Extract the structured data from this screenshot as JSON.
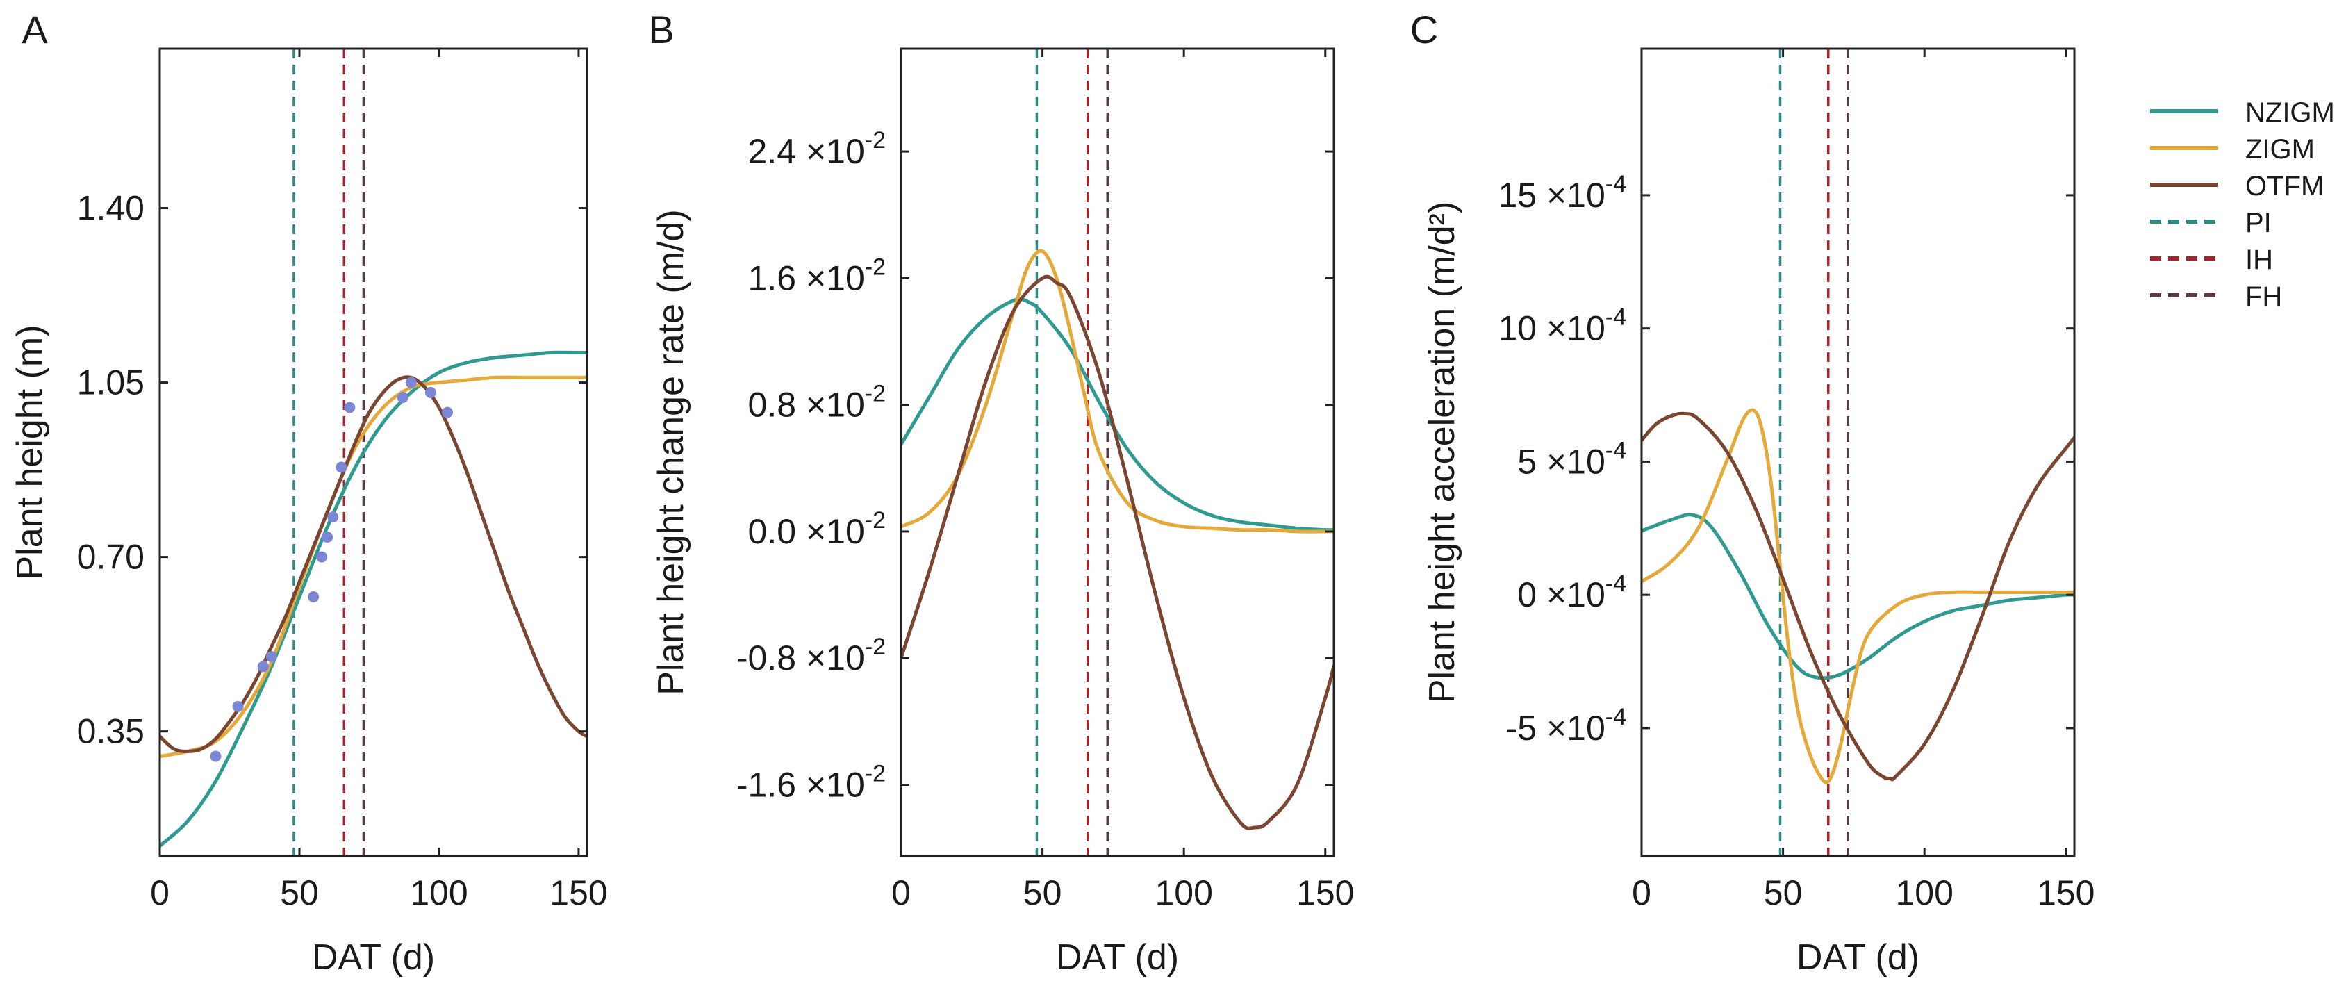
{
  "legend": {
    "items": [
      {
        "key": "NZIGM",
        "label": "NZIGM",
        "color": "#2e9a90",
        "style": "solid"
      },
      {
        "key": "ZIGM",
        "label": "ZIGM",
        "color": "#e5a93a",
        "style": "solid"
      },
      {
        "key": "OTFM",
        "label": "OTFM",
        "color": "#7a4632",
        "style": "solid"
      },
      {
        "key": "PI",
        "label": "PI",
        "color": "#2e8a84",
        "style": "dashed"
      },
      {
        "key": "IH",
        "label": "IH",
        "color": "#a8222a",
        "style": "dashed"
      },
      {
        "key": "FH",
        "label": "FH",
        "color": "#5a3a4a",
        "style": "dashed"
      }
    ]
  },
  "chart_data": [
    {
      "panel": "A",
      "type": "line",
      "ylabel": "Plant height (m)",
      "xlabel": "DAT (d)",
      "xlim": [
        0,
        153
      ],
      "ylim": [
        0.1,
        1.72
      ],
      "xticks": [
        0,
        50,
        100,
        150
      ],
      "xtick_labels": [
        "0",
        "50",
        "100",
        "150"
      ],
      "yticks": [
        0.35,
        0.7,
        1.05,
        1.4
      ],
      "ytick_labels": [
        "0.35",
        "0.70",
        "1.05",
        "1.40"
      ],
      "vlines": [
        {
          "key": "PI",
          "x": 48
        },
        {
          "key": "IH",
          "x": 66
        },
        {
          "key": "FH",
          "x": 73
        }
      ],
      "series": [
        {
          "key": "NZIGM",
          "x": [
            0,
            10,
            20,
            30,
            40,
            50,
            60,
            70,
            80,
            90,
            100,
            110,
            120,
            130,
            140,
            150,
            153
          ],
          "y": [
            0.12,
            0.17,
            0.25,
            0.36,
            0.48,
            0.62,
            0.76,
            0.88,
            0.97,
            1.03,
            1.07,
            1.09,
            1.1,
            1.105,
            1.11,
            1.11,
            1.11
          ]
        },
        {
          "key": "ZIGM",
          "x": [
            0,
            10,
            20,
            30,
            40,
            50,
            60,
            70,
            80,
            90,
            100,
            110,
            120,
            130,
            140,
            150,
            153
          ],
          "y": [
            0.3,
            0.31,
            0.33,
            0.39,
            0.49,
            0.64,
            0.79,
            0.92,
            1.0,
            1.04,
            1.05,
            1.055,
            1.06,
            1.06,
            1.06,
            1.06,
            1.06
          ]
        },
        {
          "key": "OTFM",
          "x": [
            0,
            5,
            10,
            15,
            20,
            25,
            30,
            35,
            40,
            45,
            50,
            55,
            60,
            65,
            70,
            75,
            80,
            85,
            90,
            95,
            100,
            105,
            110,
            115,
            120,
            125,
            130,
            135,
            140,
            145,
            150,
            153
          ],
          "y": [
            0.34,
            0.315,
            0.31,
            0.315,
            0.335,
            0.37,
            0.41,
            0.46,
            0.52,
            0.58,
            0.65,
            0.72,
            0.79,
            0.86,
            0.93,
            0.99,
            1.03,
            1.055,
            1.06,
            1.04,
            1.0,
            0.94,
            0.87,
            0.79,
            0.71,
            0.63,
            0.56,
            0.49,
            0.43,
            0.38,
            0.35,
            0.34
          ]
        }
      ],
      "points": {
        "x": [
          20,
          28,
          37,
          40,
          55,
          58,
          60,
          62,
          65,
          68,
          87,
          90,
          97,
          103
        ],
        "y": [
          0.3,
          0.4,
          0.48,
          0.5,
          0.62,
          0.7,
          0.74,
          0.78,
          0.88,
          1.0,
          1.02,
          1.05,
          1.03,
          0.99
        ]
      }
    },
    {
      "panel": "B",
      "type": "line",
      "ylabel": "Plant height change rate (m/d)",
      "xlabel": "DAT (d)",
      "xlim": [
        0,
        153
      ],
      "ylim": [
        -0.0205,
        0.0305
      ],
      "xticks": [
        0,
        50,
        100,
        150
      ],
      "xtick_labels": [
        "0",
        "50",
        "100",
        "150"
      ],
      "yticks": [
        -0.016,
        -0.008,
        0.0,
        0.008,
        0.016,
        0.024
      ],
      "ytick_labels": [
        {
          "mantissa": "-1.6",
          "exp": "-2"
        },
        {
          "mantissa": "-0.8",
          "exp": "-2"
        },
        {
          "mantissa": "0.0",
          "exp": "-2"
        },
        {
          "mantissa": "0.8",
          "exp": "-2"
        },
        {
          "mantissa": "1.6",
          "exp": "-2"
        },
        {
          "mantissa": "2.4",
          "exp": "-2"
        }
      ],
      "tick_times": "×10",
      "vlines": [
        {
          "key": "PI",
          "x": 48
        },
        {
          "key": "IH",
          "x": 66
        },
        {
          "key": "FH",
          "x": 73
        }
      ],
      "series": [
        {
          "key": "NZIGM",
          "x": [
            0,
            10,
            20,
            30,
            40,
            45,
            50,
            60,
            70,
            80,
            90,
            100,
            110,
            120,
            130,
            140,
            150,
            153
          ],
          "y": [
            0.0055,
            0.0085,
            0.0115,
            0.0135,
            0.0146,
            0.0145,
            0.0138,
            0.0115,
            0.0082,
            0.0052,
            0.0031,
            0.0018,
            0.001,
            0.0006,
            0.0004,
            0.0002,
            0.0001,
            0.0001
          ]
        },
        {
          "key": "ZIGM",
          "x": [
            0,
            10,
            20,
            30,
            40,
            45,
            50,
            55,
            60,
            65,
            70,
            80,
            90,
            100,
            110,
            120,
            130,
            140,
            150,
            153
          ],
          "y": [
            0.0003,
            0.0012,
            0.0035,
            0.008,
            0.014,
            0.0168,
            0.0177,
            0.016,
            0.0125,
            0.0085,
            0.005,
            0.0018,
            0.0007,
            0.0003,
            0.0002,
            0.0001,
            0.0001,
            0.0,
            0.0,
            0.0
          ]
        },
        {
          "key": "OTFM",
          "x": [
            0,
            10,
            20,
            30,
            40,
            50,
            55,
            60,
            70,
            80,
            90,
            100,
            110,
            120,
            125,
            130,
            140,
            150,
            153
          ],
          "y": [
            -0.008,
            -0.0025,
            0.0035,
            0.0095,
            0.014,
            0.016,
            0.0157,
            0.0148,
            0.01,
            0.0032,
            -0.004,
            -0.0105,
            -0.0155,
            -0.0184,
            -0.0187,
            -0.0183,
            -0.016,
            -0.0105,
            -0.0085
          ]
        }
      ]
    },
    {
      "panel": "C",
      "type": "line",
      "ylabel": "Plant height acceleration (m/d²)",
      "xlabel": "DAT (d)",
      "xlim": [
        0,
        153
      ],
      "ylim": [
        -0.00098,
        0.00205
      ],
      "xticks": [
        0,
        50,
        100,
        150
      ],
      "xtick_labels": [
        "0",
        "50",
        "100",
        "150"
      ],
      "yticks": [
        -0.0005,
        0.0,
        0.0005,
        0.001,
        0.0015
      ],
      "ytick_labels": [
        {
          "mantissa": "-5",
          "exp": "-4"
        },
        {
          "mantissa": "0",
          "exp": "-4"
        },
        {
          "mantissa": "5",
          "exp": "-4"
        },
        {
          "mantissa": "10",
          "exp": "-4"
        },
        {
          "mantissa": "15",
          "exp": "-4"
        }
      ],
      "tick_times": "×10",
      "vlines": [
        {
          "key": "PI",
          "x": 49
        },
        {
          "key": "IH",
          "x": 66
        },
        {
          "key": "FH",
          "x": 73
        }
      ],
      "series": [
        {
          "key": "NZIGM",
          "x": [
            0,
            10,
            18,
            25,
            35,
            45,
            55,
            62,
            70,
            80,
            90,
            100,
            110,
            120,
            130,
            140,
            150,
            153
          ],
          "y": [
            0.00024,
            0.00028,
            0.0003,
            0.00025,
            8e-05,
            -0.00012,
            -0.00027,
            -0.00031,
            -0.0003,
            -0.00024,
            -0.00016,
            -0.0001,
            -6e-05,
            -4e-05,
            -2e-05,
            -1e-05,
            0.0,
            0.0
          ]
        },
        {
          "key": "ZIGM",
          "x": [
            0,
            10,
            20,
            30,
            36,
            40,
            43,
            46,
            49,
            52,
            55,
            58,
            62,
            66,
            70,
            75,
            80,
            90,
            100,
            110,
            120,
            130,
            140,
            150,
            153
          ],
          "y": [
            5e-05,
            0.00012,
            0.00025,
            0.0005,
            0.00066,
            0.00069,
            0.0006,
            0.0004,
            0.0001,
            -0.0002,
            -0.00042,
            -0.00055,
            -0.00066,
            -0.0007,
            -0.00058,
            -0.00033,
            -0.00015,
            -4e-05,
            0.0,
            1e-05,
            1e-05,
            1e-05,
            1e-05,
            1e-05,
            1e-05
          ]
        },
        {
          "key": "OTFM",
          "x": [
            0,
            5,
            10,
            15,
            20,
            30,
            40,
            50,
            60,
            70,
            80,
            85,
            88,
            90,
            100,
            110,
            120,
            130,
            140,
            150,
            153
          ],
          "y": [
            0.00058,
            0.00064,
            0.00067,
            0.00068,
            0.00066,
            0.00054,
            0.00033,
            6e-05,
            -0.00022,
            -0.00045,
            -0.00063,
            -0.00068,
            -0.00069,
            -0.00068,
            -0.00056,
            -0.00036,
            -9e-05,
            0.0002,
            0.00041,
            0.00055,
            0.00059
          ]
        }
      ]
    }
  ],
  "panel_labels": [
    "A",
    "B",
    "C"
  ]
}
